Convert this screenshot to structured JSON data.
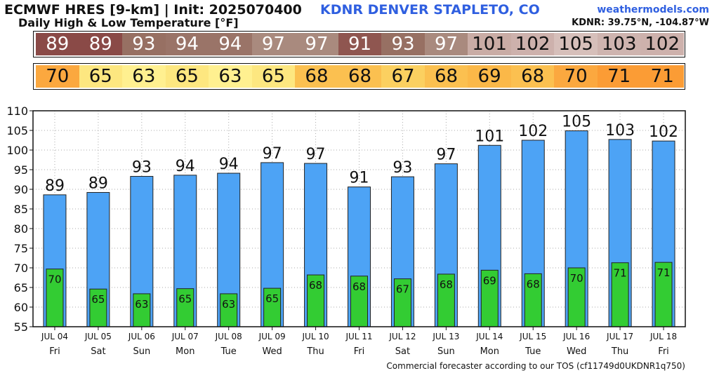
{
  "header": {
    "model_title": "ECMWF HRES [9-km] | Init: 2025070400",
    "station": "KDNR DENVER STAPLETO, CO",
    "subtitle": "Daily High & Low Temperature [°F]",
    "site": "weathermodels.com",
    "coords": "KDNR: 39.75°N, -104.87°W"
  },
  "footer": {
    "tos": "Commercial forecaster according to our TOS (cf11749d0UKDNR1q750)"
  },
  "colors": {
    "high_bar": "#4da3f5",
    "low_bar": "#33cc33",
    "high_strip": [
      "#8a4a47",
      "#8a4a47",
      "#977063",
      "#9a7468",
      "#9a7468",
      "#a98a7e",
      "#a98a7e",
      "#8f5650",
      "#977063",
      "#a98a7e",
      "#c9aca5",
      "#cdb1ac",
      "#d6bfba",
      "#ceb4af",
      "#cdb1ac"
    ],
    "low_strip": [
      "#fba83f",
      "#fde780",
      "#fff090",
      "#fde780",
      "#fff090",
      "#fde780",
      "#fbc050",
      "#fbc050",
      "#fbd060",
      "#fbc050",
      "#fbb848",
      "#fbc050",
      "#fba83f",
      "#fb9c35",
      "#fb9c35"
    ]
  },
  "chart_data": {
    "type": "bar",
    "title": "Daily High & Low Temperature [°F]",
    "categories": [
      "JUL 04",
      "JUL 05",
      "JUL 06",
      "JUL 07",
      "JUL 08",
      "JUL 09",
      "JUL 10",
      "JUL 11",
      "JUL 12",
      "JUL 13",
      "JUL 14",
      "JUL 15",
      "JUL 16",
      "JUL 17",
      "JUL 18"
    ],
    "weekdays": [
      "Fri",
      "Sat",
      "Sun",
      "Mon",
      "Tue",
      "Wed",
      "Thu",
      "Fri",
      "Sat",
      "Sun",
      "Mon",
      "Tue",
      "Wed",
      "Thu",
      "Fri"
    ],
    "series": [
      {
        "name": "High",
        "values": [
          88.6,
          89.2,
          93.3,
          93.6,
          94.1,
          96.8,
          96.6,
          90.6,
          93.2,
          96.5,
          101.2,
          102.5,
          104.9,
          102.7,
          102.3
        ],
        "labels": [
          "89",
          "89",
          "93",
          "94",
          "94",
          "97",
          "97",
          "91",
          "93",
          "97",
          "101",
          "102",
          "105",
          "103",
          "102"
        ]
      },
      {
        "name": "Low",
        "values": [
          69.7,
          64.6,
          63.4,
          64.7,
          63.4,
          64.8,
          68.2,
          67.9,
          67.2,
          68.4,
          69.4,
          68.5,
          70.0,
          71.3,
          71.4
        ],
        "labels": [
          "70",
          "65",
          "63",
          "65",
          "63",
          "65",
          "68",
          "68",
          "67",
          "68",
          "69",
          "68",
          "70",
          "71",
          "71"
        ]
      }
    ],
    "ylim": [
      55,
      110
    ],
    "yticks": [
      "55",
      "60",
      "65",
      "70",
      "75",
      "80",
      "85",
      "90",
      "95",
      "100",
      "105",
      "110"
    ],
    "grid": true
  }
}
